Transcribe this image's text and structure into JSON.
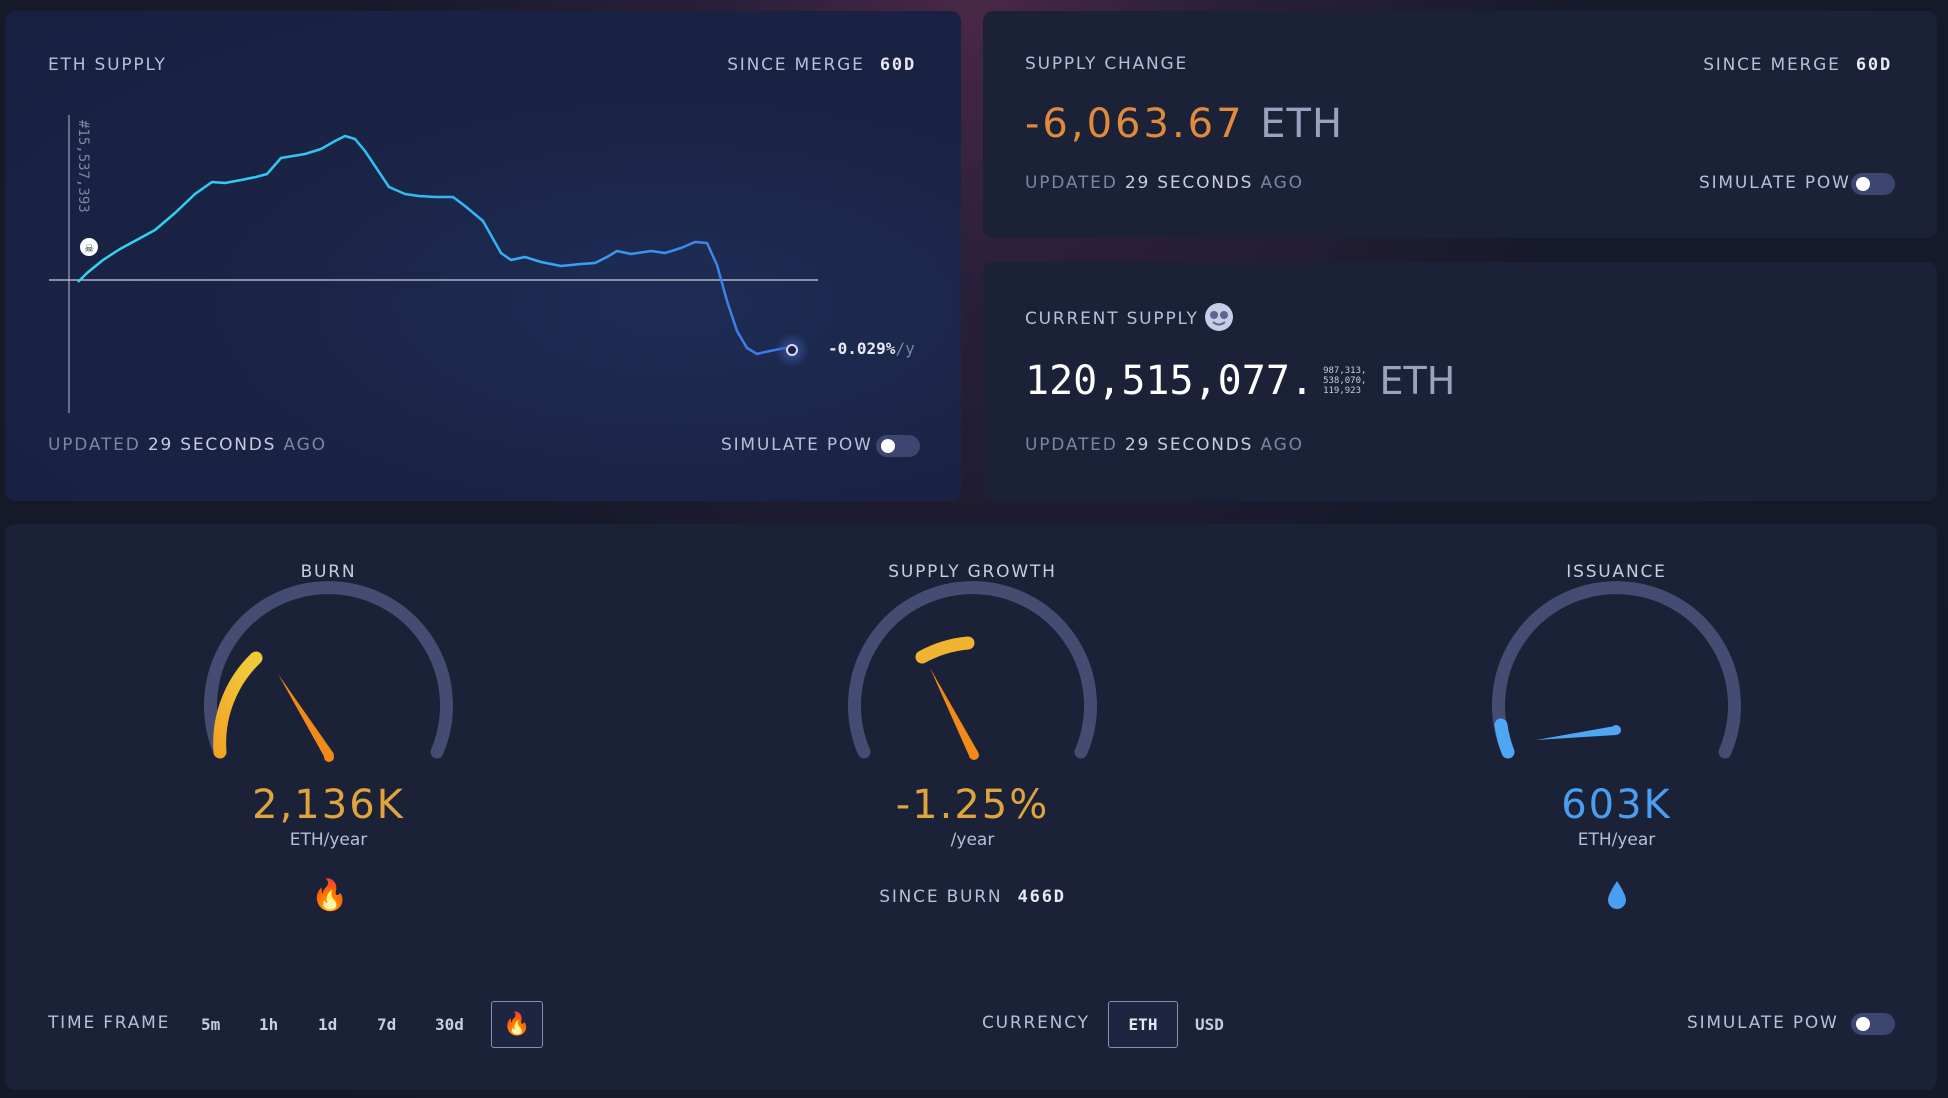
{
  "eth_supply": {
    "title": "ETH SUPPLY",
    "since_merge_label": "SINCE MERGE",
    "since_merge_value": "60d",
    "block_marker": "#15,537,393",
    "rate_value": "-0.029%",
    "rate_unit": "/y",
    "updated_prefix": "UPDATED",
    "updated_value": "29 SECONDS",
    "updated_suffix": "AGO",
    "simulate_label": "SIMULATE PoW",
    "simulate_on": false,
    "line_color": "#2fd3f0",
    "line_color_end": "#3b7ff0"
  },
  "supply_change": {
    "title": "SUPPLY CHANGE",
    "since_merge_label": "SINCE MERGE",
    "since_merge_value": "60d",
    "value": "-6,063.67",
    "unit": "ETH",
    "value_color": "#e08a3c",
    "updated_prefix": "UPDATED",
    "updated_value": "29 SECONDS",
    "updated_suffix": "AGO",
    "simulate_label": "SIMULATE PoW",
    "simulate_on": false
  },
  "current_supply": {
    "title": "CURRENT SUPPLY",
    "value_main": "120,515,077.",
    "decimals_line1": "987,313,",
    "decimals_line2": "538,070,",
    "decimals_line3": "119,923",
    "unit": "ETH",
    "updated_prefix": "UPDATED",
    "updated_value": "29 SECONDS",
    "updated_suffix": "AGO"
  },
  "gauges": {
    "burn": {
      "title": "BURN",
      "value": "2,136K",
      "unit": "ETH/year",
      "icon": "fire-icon",
      "color": "#e8a43a"
    },
    "supply_growth": {
      "title": "SUPPLY GROWTH",
      "value": "-1.25%",
      "unit": "/year",
      "since_label": "SINCE BURN",
      "since_value": "466d",
      "color": "#e8a43a"
    },
    "issuance": {
      "title": "ISSUANCE",
      "value": "603K",
      "unit": "ETH/year",
      "icon": "droplet-icon",
      "color": "#4a9ef0"
    }
  },
  "controls": {
    "time_frame_label": "TIME FRAME",
    "time_frames": [
      "5m",
      "1h",
      "1d",
      "7d",
      "30d"
    ],
    "selected_time_frame_icon": "fire-icon",
    "currency_label": "CURRENCY",
    "currencies": [
      "ETH",
      "USD"
    ],
    "selected_currency": "ETH",
    "simulate_label": "SIMULATE PoW",
    "simulate_on": false
  }
}
